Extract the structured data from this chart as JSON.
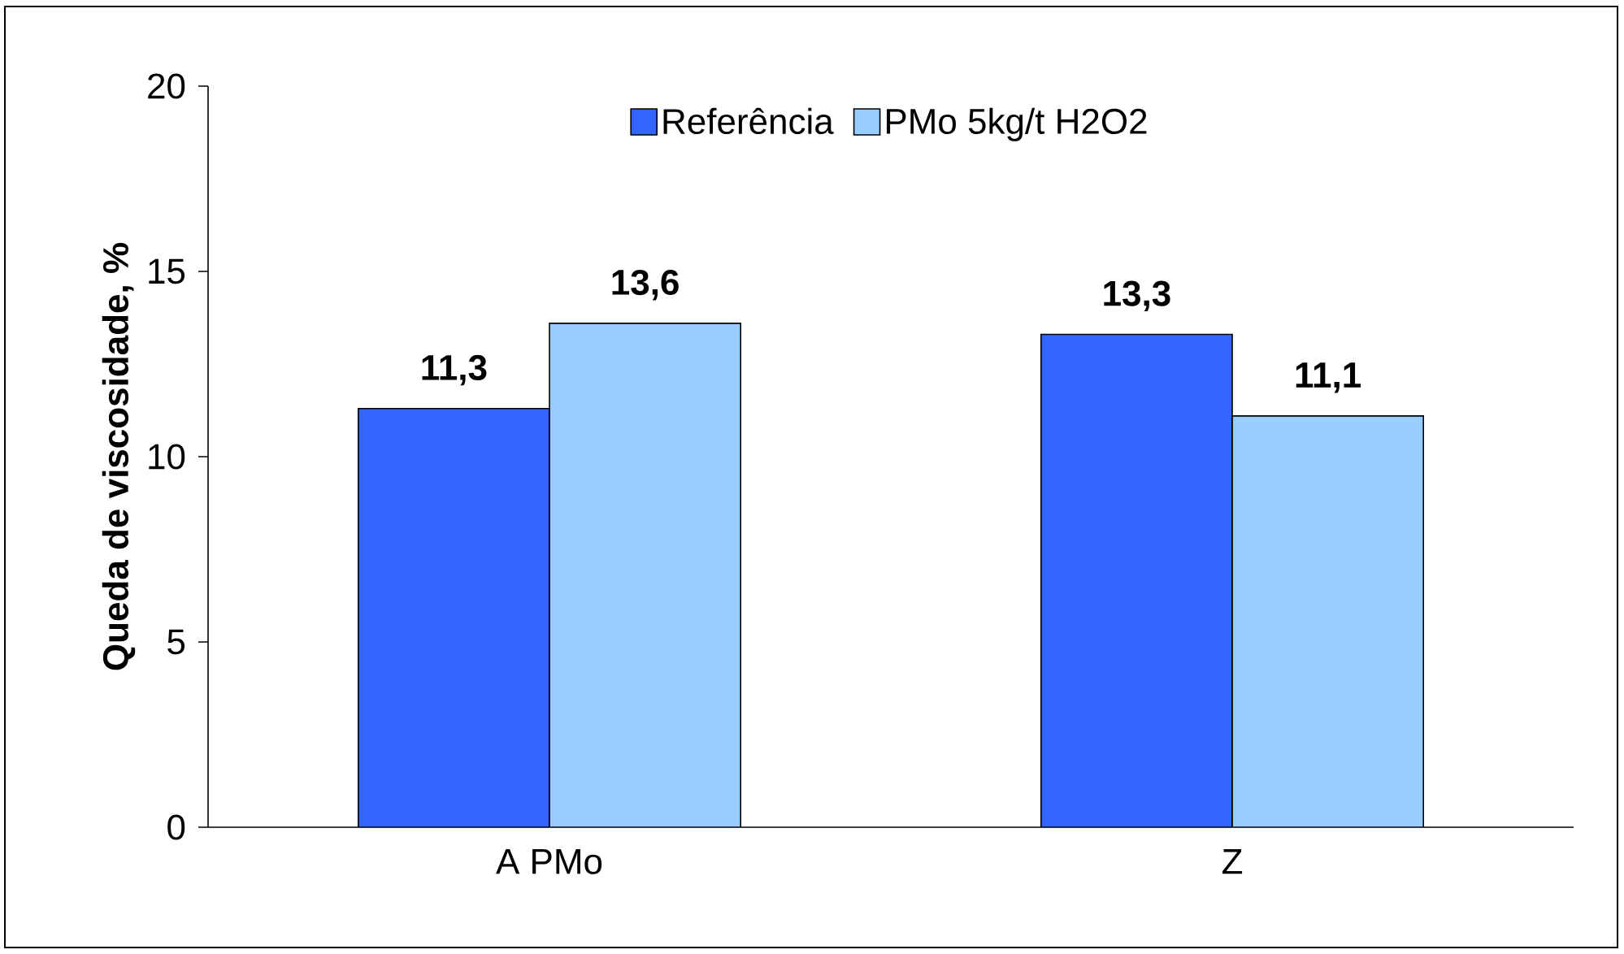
{
  "chart_data": {
    "type": "bar",
    "ylabel": "Queda de viscosidade, %",
    "categories": [
      "A PMo",
      "Z"
    ],
    "series": [
      {
        "name": "Referência",
        "color": "#3366ff",
        "values": [
          11.3,
          13.3
        ],
        "value_labels": [
          "11,3",
          "13,3"
        ]
      },
      {
        "name": "PMo 5kg/t H2O2",
        "color": "#99ccff",
        "values": [
          13.6,
          11.1
        ],
        "value_labels": [
          "13,6",
          "11,1"
        ]
      }
    ],
    "ylim": [
      0,
      20
    ],
    "yticks": [
      0,
      5,
      10,
      15,
      20
    ],
    "grid": false,
    "legend": "top"
  }
}
